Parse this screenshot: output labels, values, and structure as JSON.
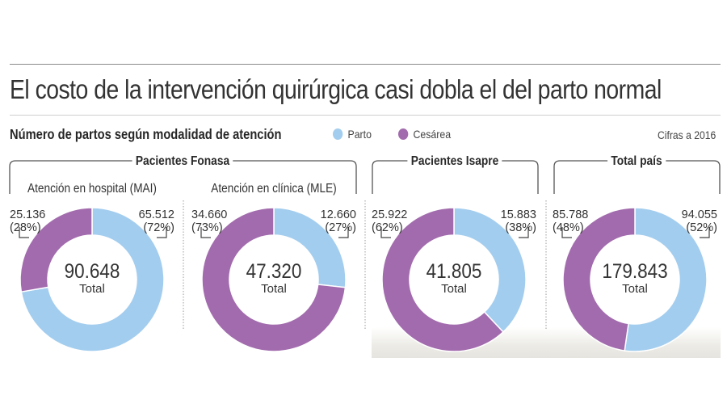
{
  "header": {
    "title": "El costo de la intervención quirúrgica casi dobla el del parto normal",
    "subtitle": "Número de partos según modalidad de atención",
    "note": "Cifras a 2016"
  },
  "colors": {
    "parto": "#a3cdee",
    "cesarea": "#a26bad"
  },
  "chart_data": {
    "type": "pie",
    "title": "Número de partos según modalidad de atención",
    "note": "Cifras a 2016",
    "legend": [
      {
        "name": "Parto",
        "color": "#a3cdee"
      },
      {
        "name": "Cesárea",
        "color": "#a26bad"
      }
    ],
    "legend_position": "top",
    "groups": [
      {
        "label": "Pacientes Fonasa",
        "charts": [
          0,
          1
        ]
      },
      {
        "label": "Pacientes Isapre",
        "charts": [
          2
        ]
      },
      {
        "label": "Total país",
        "charts": [
          3
        ]
      }
    ],
    "charts": [
      {
        "subtitle": "Atención en hospital (MAI)",
        "total": 90648,
        "total_label": "90.648",
        "total_caption": "Total",
        "series": [
          {
            "name": "Parto",
            "value": 65512,
            "value_label": "65.512",
            "pct_label": "(72%)"
          },
          {
            "name": "Cesárea",
            "value": 25136,
            "value_label": "25.136",
            "pct_label": "(28%)"
          }
        ]
      },
      {
        "subtitle": "Atención en clínica (MLE)",
        "total": 47320,
        "total_label": "47.320",
        "total_caption": "Total",
        "series": [
          {
            "name": "Parto",
            "value": 12660,
            "value_label": "12.660",
            "pct_label": "(27%)"
          },
          {
            "name": "Cesárea",
            "value": 34660,
            "value_label": "34.660",
            "pct_label": "(73%)"
          }
        ]
      },
      {
        "subtitle": "",
        "total": 41805,
        "total_label": "41.805",
        "total_caption": "Total",
        "series": [
          {
            "name": "Parto",
            "value": 15883,
            "value_label": "15.883",
            "pct_label": "(38%)"
          },
          {
            "name": "Cesárea",
            "value": 25922,
            "value_label": "25.922",
            "pct_label": "(62%)"
          }
        ]
      },
      {
        "subtitle": "",
        "total": 179843,
        "total_label": "179.843",
        "total_caption": "Total",
        "series": [
          {
            "name": "Parto",
            "value": 94055,
            "value_label": "94.055",
            "pct_label": "(52%)"
          },
          {
            "name": "Cesárea",
            "value": 85788,
            "value_label": "85.788",
            "pct_label": "(48%)"
          }
        ]
      }
    ]
  }
}
